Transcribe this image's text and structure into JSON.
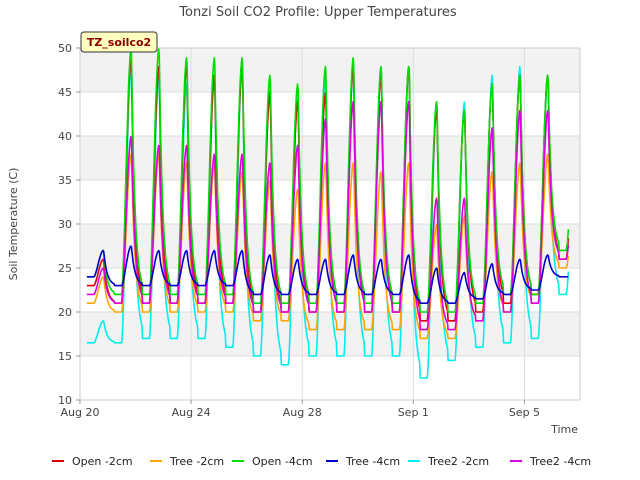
{
  "chart_data": {
    "type": "line",
    "title": "Tonzi Soil CO2 Profile: Upper Temperatures",
    "site_label": "TZ_soilco2",
    "xlabel": "Time",
    "ylabel": "Soil Temperature (C)",
    "ylim": [
      10,
      50
    ],
    "yticks": [
      10,
      15,
      20,
      25,
      30,
      35,
      40,
      45,
      50
    ],
    "xlim": [
      "2023-08-20",
      "2023-09-07"
    ],
    "xticks": [
      {
        "date": "2023-08-20",
        "label": "Aug 20"
      },
      {
        "date": "2023-08-24",
        "label": "Aug 24"
      },
      {
        "date": "2023-08-28",
        "label": "Aug 28"
      },
      {
        "date": "2023-09-01",
        "label": "Sep 1"
      },
      {
        "date": "2023-09-05",
        "label": "Sep 5"
      }
    ],
    "data_range": [
      "2023-08-20",
      "2023-09-06"
    ],
    "grid": true,
    "background_bands": true,
    "legend_position": "bottom",
    "days": [
      "Aug 20",
      "Aug 21",
      "Aug 22",
      "Aug 23",
      "Aug 24",
      "Aug 25",
      "Aug 26",
      "Aug 27",
      "Aug 28",
      "Aug 29",
      "Aug 30",
      "Aug 31",
      "Sep 1",
      "Sep 2",
      "Sep 3",
      "Sep 4",
      "Sep 5",
      "Sep 6"
    ],
    "series": [
      {
        "name": "Open -2cm",
        "color": "#dd0000",
        "daily_max": [
          26,
          49,
          48,
          48,
          47,
          48,
          45,
          44,
          45,
          48,
          47,
          48,
          43,
          43,
          46,
          47,
          47,
          38
        ],
        "daily_min": [
          23,
          21,
          21,
          21,
          21,
          21,
          20,
          20,
          20,
          20,
          20,
          20,
          19,
          19,
          20,
          21,
          22,
          26
        ]
      },
      {
        "name": "Tree -2cm",
        "color": "#ffa500",
        "daily_max": [
          24,
          38,
          38,
          37,
          37,
          36,
          35,
          34,
          37,
          37,
          36,
          37,
          30,
          31,
          36,
          37,
          38,
          32
        ],
        "daily_min": [
          21,
          20,
          20,
          20,
          20,
          20,
          19,
          19,
          18,
          18,
          18,
          18,
          17,
          17,
          19,
          20,
          21,
          25
        ]
      },
      {
        "name": "Open -4cm",
        "color": "#00dd00",
        "daily_max": [
          27,
          50,
          50,
          49,
          49,
          49,
          47,
          46,
          48,
          49,
          48,
          48,
          44,
          43,
          46,
          47,
          47,
          39
        ],
        "daily_min": [
          24,
          22,
          22,
          22,
          22,
          22,
          21,
          21,
          21,
          21,
          21,
          21,
          20,
          20,
          21,
          22,
          22,
          27
        ]
      },
      {
        "name": "Tree -4cm",
        "color": "#0000cc",
        "daily_max": [
          27,
          27.5,
          27,
          27,
          27,
          27,
          26.5,
          26,
          26,
          26.5,
          26,
          26.5,
          25,
          24.5,
          25.5,
          26,
          26.5,
          24
        ],
        "daily_min": [
          24,
          23,
          23,
          23,
          23,
          23,
          22,
          22,
          22,
          22,
          22,
          22,
          21,
          21,
          21.5,
          22,
          22.5,
          24
        ]
      },
      {
        "name": "Tree2 -2cm",
        "color": "#00eeee",
        "daily_max": [
          19,
          48,
          47,
          46,
          47,
          48,
          46,
          45,
          47,
          48,
          48,
          48,
          44,
          44,
          47,
          48,
          47,
          35
        ],
        "daily_min": [
          16.5,
          16.5,
          17,
          17,
          17,
          16,
          15,
          14,
          15,
          15,
          15,
          15,
          12.5,
          14.5,
          16,
          16.5,
          17,
          22
        ]
      },
      {
        "name": "Tree2 -4cm",
        "color": "#dd00dd",
        "daily_max": [
          25,
          40,
          39,
          39,
          38,
          38,
          37,
          39,
          42,
          44,
          44,
          44,
          33,
          33,
          41,
          43,
          43,
          34
        ],
        "daily_min": [
          22,
          21,
          21,
          21,
          21,
          21,
          20,
          20,
          20,
          20,
          20,
          20,
          18,
          18,
          19,
          20,
          21,
          26
        ]
      }
    ]
  }
}
